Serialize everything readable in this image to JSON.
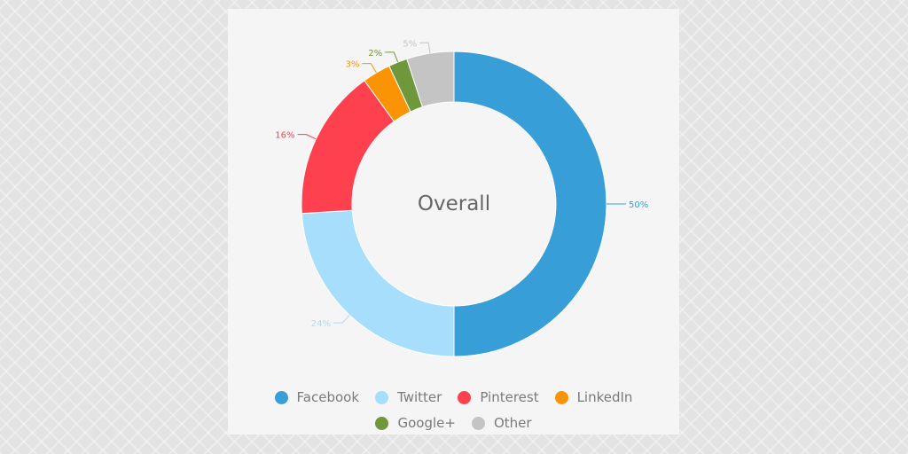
{
  "chart_data": {
    "type": "pie",
    "title": "Overall",
    "donut": true,
    "categories": [
      "Facebook",
      "Twitter",
      "Pinterest",
      "LinkedIn",
      "Google+",
      "Other"
    ],
    "values": [
      50,
      24,
      16,
      3,
      2,
      5
    ],
    "value_labels": [
      "50%",
      "24%",
      "16%",
      "3%",
      "2%",
      "5%"
    ],
    "colors": [
      "#379ed8",
      "#a6defc",
      "#ff404f",
      "#fb9404",
      "#6f973c",
      "#c4c4c4"
    ],
    "legend_position": "bottom"
  }
}
